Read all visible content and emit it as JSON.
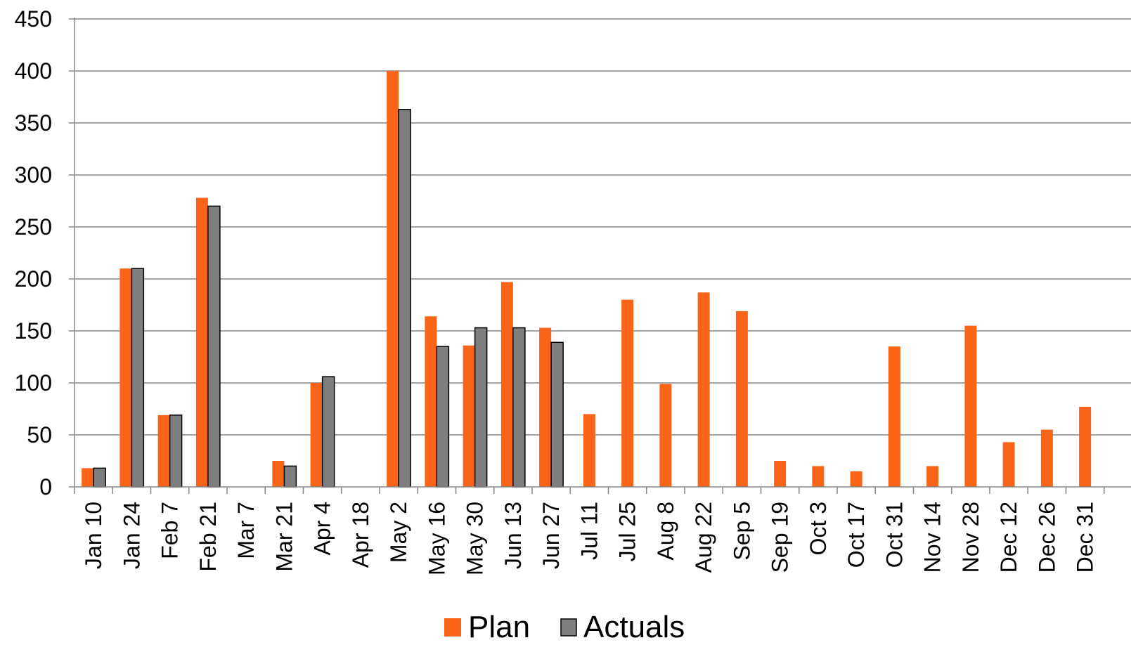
{
  "chart_data": {
    "type": "bar",
    "title": "",
    "xlabel": "",
    "ylabel": "",
    "ylim": [
      0,
      450
    ],
    "yticks": [
      0,
      50,
      100,
      150,
      200,
      250,
      300,
      350,
      400,
      450
    ],
    "grid": true,
    "legend_position": "bottom",
    "categories": [
      "Jan 10",
      "Jan 24",
      "Feb 7",
      "Feb 21",
      "Mar 7",
      "Mar 21",
      "Apr 4",
      "Apr 18",
      "May 2",
      "May 16",
      "May 30",
      "Jun 13",
      "Jun 27",
      "Jul 11",
      "Jul 25",
      "Aug 8",
      "Aug 22",
      "Sep 5",
      "Sep 19",
      "Oct 3",
      "Oct 17",
      "Oct 31",
      "Nov 14",
      "Nov 28",
      "Dec 12",
      "Dec 26",
      "Dec 31"
    ],
    "series": [
      {
        "name": "Plan",
        "color": "#F96418",
        "values": [
          18,
          210,
          69,
          278,
          null,
          25,
          100,
          null,
          400,
          164,
          136,
          197,
          153,
          70,
          180,
          99,
          187,
          169,
          25,
          20,
          15,
          135,
          20,
          155,
          43,
          55,
          77
        ]
      },
      {
        "name": "Actuals",
        "color": "#7F7F7F",
        "values": [
          18,
          210,
          69,
          270,
          null,
          20,
          106,
          null,
          363,
          135,
          153,
          153,
          139,
          null,
          null,
          null,
          null,
          null,
          null,
          null,
          null,
          null,
          null,
          null,
          null,
          null,
          null
        ]
      }
    ]
  }
}
